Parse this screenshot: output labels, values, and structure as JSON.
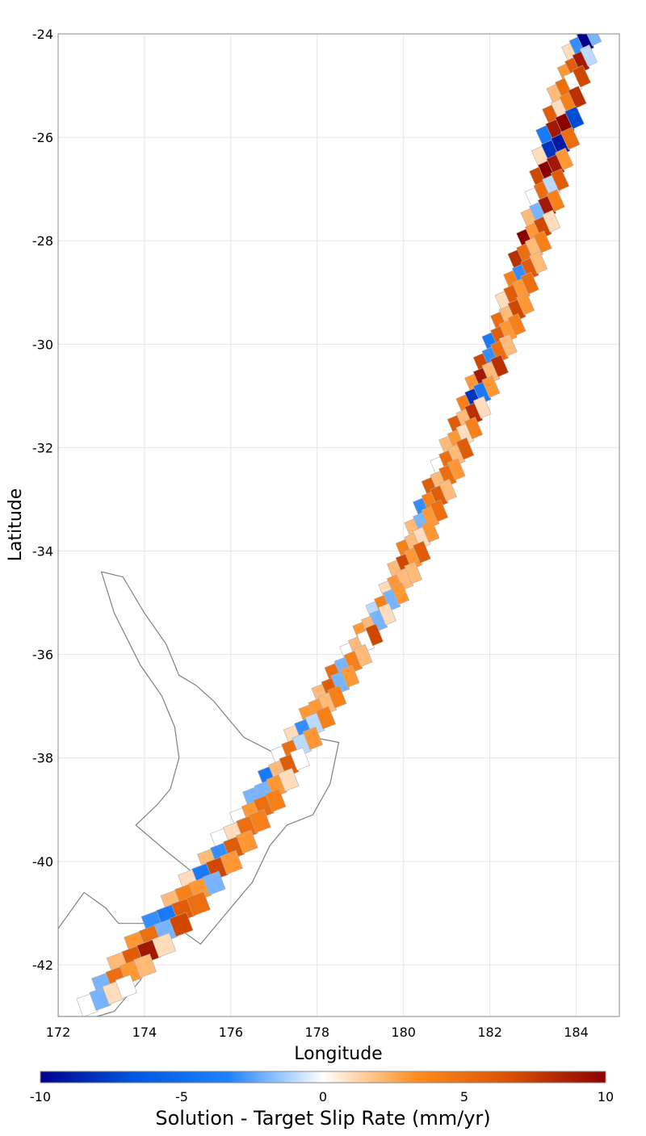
{
  "chart_data": {
    "type": "heatmap",
    "title": "",
    "xlabel": "Longitude",
    "ylabel": "Latitude",
    "xlim": [
      172,
      185
    ],
    "ylim": [
      -43,
      -24
    ],
    "x_ticks": [
      "172",
      "174",
      "176",
      "178",
      "180",
      "182",
      "184"
    ],
    "y_ticks": [
      "-24",
      "-26",
      "-28",
      "-30",
      "-32",
      "-34",
      "-36",
      "-38",
      "-40",
      "-42"
    ],
    "grid": true,
    "colorbar": {
      "title": "Solution - Target Slip Rate (mm/yr)",
      "range": [
        -10,
        10
      ],
      "ticks": [
        "-10",
        "-5",
        "0",
        "5",
        "10"
      ],
      "colors": [
        "#00008c",
        "#0057e0",
        "#1e82ff",
        "#ffffff",
        "#ff8c1e",
        "#d85000",
        "#8c0000"
      ]
    },
    "fault_trace": [
      [
        184.4,
        -24.0
      ],
      [
        184.3,
        -25.0
      ],
      [
        184.0,
        -26.0
      ],
      [
        183.8,
        -27.0
      ],
      [
        183.5,
        -28.0
      ],
      [
        183.1,
        -29.0
      ],
      [
        182.6,
        -30.0
      ],
      [
        182.1,
        -31.0
      ],
      [
        181.6,
        -32.0
      ],
      [
        181.1,
        -33.0
      ],
      [
        180.6,
        -34.0
      ],
      [
        180.1,
        -35.0
      ],
      [
        179.5,
        -36.0
      ],
      [
        178.8,
        -37.0
      ],
      [
        178.0,
        -38.0
      ],
      [
        177.3,
        -39.0
      ],
      [
        176.6,
        -40.0
      ],
      [
        175.6,
        -41.0
      ],
      [
        174.6,
        -42.0
      ],
      [
        173.4,
        -42.8
      ]
    ],
    "subsection_rows": [
      {
        "lat": -24.2,
        "lon": 184.2,
        "width": 0.9,
        "values": [
          1,
          -3,
          -10,
          -2
        ]
      },
      {
        "lat": -24.6,
        "lon": 184.1,
        "width": 0.9,
        "values": [
          3,
          6,
          9,
          -1
        ]
      },
      {
        "lat": -25.0,
        "lon": 183.9,
        "width": 1.0,
        "values": [
          2,
          5,
          0,
          7
        ]
      },
      {
        "lat": -25.4,
        "lon": 183.8,
        "width": 1.0,
        "values": [
          6,
          1,
          4,
          8
        ]
      },
      {
        "lat": -25.8,
        "lon": 183.7,
        "width": 1.1,
        "values": [
          -4,
          9,
          10,
          -7
        ]
      },
      {
        "lat": -26.2,
        "lon": 183.6,
        "width": 1.1,
        "values": [
          1,
          -8,
          -9,
          5
        ]
      },
      {
        "lat": -26.6,
        "lon": 183.5,
        "width": 1.0,
        "values": [
          7,
          10,
          9,
          3
        ]
      },
      {
        "lat": -27.0,
        "lon": 183.4,
        "width": 1.0,
        "values": [
          0,
          5,
          -1,
          6
        ]
      },
      {
        "lat": -27.4,
        "lon": 183.3,
        "width": 1.0,
        "values": [
          2,
          -2,
          9,
          4
        ]
      },
      {
        "lat": -27.8,
        "lon": 183.2,
        "width": 1.0,
        "values": [
          10,
          3,
          7,
          1
        ]
      },
      {
        "lat": -28.2,
        "lon": 183.0,
        "width": 1.0,
        "values": [
          8,
          5,
          2,
          4
        ]
      },
      {
        "lat": -28.6,
        "lon": 182.9,
        "width": 1.0,
        "values": [
          4,
          -3,
          6,
          2
        ]
      },
      {
        "lat": -29.0,
        "lon": 182.7,
        "width": 1.0,
        "values": [
          1,
          6,
          3,
          5
        ]
      },
      {
        "lat": -29.4,
        "lon": 182.6,
        "width": 1.0,
        "values": [
          5,
          2,
          7,
          3
        ]
      },
      {
        "lat": -29.8,
        "lon": 182.4,
        "width": 1.0,
        "values": [
          -4,
          6,
          3,
          4
        ]
      },
      {
        "lat": -30.2,
        "lon": 182.2,
        "width": 1.0,
        "values": [
          7,
          -3,
          5,
          2
        ]
      },
      {
        "lat": -30.6,
        "lon": 182.0,
        "width": 1.0,
        "values": [
          3,
          9,
          2,
          8
        ]
      },
      {
        "lat": -31.0,
        "lon": 181.8,
        "width": 1.0,
        "values": [
          4,
          -8,
          -4,
          3
        ]
      },
      {
        "lat": -31.4,
        "lon": 181.6,
        "width": 1.0,
        "values": [
          6,
          2,
          8,
          1
        ]
      },
      {
        "lat": -31.8,
        "lon": 181.4,
        "width": 1.0,
        "values": [
          2,
          3,
          1,
          4
        ]
      },
      {
        "lat": -32.2,
        "lon": 181.2,
        "width": 1.0,
        "values": [
          0,
          5,
          2,
          6
        ]
      },
      {
        "lat": -32.6,
        "lon": 181.0,
        "width": 1.0,
        "values": [
          6,
          2,
          5,
          3
        ]
      },
      {
        "lat": -33.0,
        "lon": 180.8,
        "width": 1.0,
        "values": [
          -3,
          4,
          6,
          2
        ]
      },
      {
        "lat": -33.4,
        "lon": 180.6,
        "width": 1.0,
        "values": [
          2,
          -2,
          3,
          5
        ]
      },
      {
        "lat": -33.8,
        "lon": 180.4,
        "width": 1.0,
        "values": [
          4,
          2,
          1,
          3
        ]
      },
      {
        "lat": -34.2,
        "lon": 180.2,
        "width": 1.0,
        "values": [
          2,
          7,
          3,
          6
        ]
      },
      {
        "lat": -34.6,
        "lon": 180.0,
        "width": 1.0,
        "values": [
          1,
          3,
          2,
          2
        ]
      },
      {
        "lat": -35.0,
        "lon": 179.7,
        "width": 1.0,
        "values": [
          -1,
          4,
          -2,
          3
        ]
      },
      {
        "lat": -35.4,
        "lon": 179.4,
        "width": 1.0,
        "values": [
          3,
          2,
          -2,
          1
        ]
      },
      {
        "lat": -35.8,
        "lon": 179.1,
        "width": 1.0,
        "values": [
          0,
          2,
          0,
          7
        ]
      },
      {
        "lat": -36.2,
        "lon": 178.8,
        "width": 1.1,
        "values": [
          5,
          -2,
          4,
          2
        ]
      },
      {
        "lat": -36.6,
        "lon": 178.5,
        "width": 1.1,
        "values": [
          2,
          6,
          -2,
          3
        ]
      },
      {
        "lat": -37.0,
        "lon": 178.2,
        "width": 1.1,
        "values": [
          3,
          3,
          2,
          4
        ]
      },
      {
        "lat": -37.4,
        "lon": 177.9,
        "width": 1.2,
        "values": [
          1,
          -3,
          -1,
          4
        ]
      },
      {
        "lat": -37.8,
        "lon": 177.6,
        "width": 1.2,
        "values": [
          0,
          5,
          -1,
          3
        ]
      },
      {
        "lat": -38.2,
        "lon": 177.3,
        "width": 1.2,
        "values": [
          -4,
          2,
          6,
          0
        ]
      },
      {
        "lat": -38.6,
        "lon": 177.0,
        "width": 1.3,
        "values": [
          -2,
          -2,
          3,
          1
        ]
      },
      {
        "lat": -39.0,
        "lon": 176.7,
        "width": 1.3,
        "values": [
          0,
          3,
          5,
          4
        ]
      },
      {
        "lat": -39.4,
        "lon": 176.3,
        "width": 1.4,
        "values": [
          0,
          1,
          5,
          4
        ]
      },
      {
        "lat": -39.8,
        "lon": 176.0,
        "width": 1.4,
        "values": [
          2,
          -3,
          6,
          3
        ]
      },
      {
        "lat": -40.2,
        "lon": 175.6,
        "width": 1.5,
        "values": [
          1,
          -4,
          7,
          3
        ]
      },
      {
        "lat": -40.6,
        "lon": 175.2,
        "width": 1.5,
        "values": [
          2,
          4,
          3,
          -2
        ]
      },
      {
        "lat": -41.0,
        "lon": 174.8,
        "width": 1.6,
        "values": [
          -3,
          -4,
          6,
          5
        ]
      },
      {
        "lat": -41.4,
        "lon": 174.4,
        "width": 1.6,
        "values": [
          3,
          5,
          -2,
          7
        ]
      },
      {
        "lat": -41.8,
        "lon": 174.0,
        "width": 1.6,
        "values": [
          2,
          6,
          9,
          1
        ]
      },
      {
        "lat": -42.2,
        "lon": 173.6,
        "width": 1.5,
        "values": [
          -2,
          5,
          3,
          2
        ]
      },
      {
        "lat": -42.6,
        "lon": 173.2,
        "width": 1.4,
        "values": [
          0,
          -2,
          1,
          0
        ]
      }
    ],
    "coastline": [
      [
        173.0,
        -34.4
      ],
      [
        173.5,
        -34.5
      ],
      [
        174.0,
        -35.2
      ],
      [
        174.5,
        -35.8
      ],
      [
        174.8,
        -36.4
      ],
      [
        175.2,
        -36.6
      ],
      [
        175.6,
        -36.9
      ],
      [
        175.9,
        -37.2
      ],
      [
        176.3,
        -37.6
      ],
      [
        177.0,
        -37.9
      ],
      [
        177.9,
        -37.6
      ],
      [
        178.5,
        -37.7
      ],
      [
        178.3,
        -38.5
      ],
      [
        177.9,
        -39.1
      ],
      [
        177.3,
        -39.3
      ],
      [
        176.9,
        -39.7
      ],
      [
        176.5,
        -40.4
      ],
      [
        176.0,
        -40.9
      ],
      [
        175.3,
        -41.6
      ],
      [
        174.8,
        -41.3
      ],
      [
        174.9,
        -40.8
      ],
      [
        175.1,
        -40.2
      ],
      [
        174.5,
        -39.8
      ],
      [
        173.8,
        -39.3
      ],
      [
        174.3,
        -38.9
      ],
      [
        174.6,
        -38.6
      ],
      [
        174.8,
        -38.0
      ],
      [
        174.7,
        -37.4
      ],
      [
        174.4,
        -36.8
      ],
      [
        173.9,
        -36.2
      ],
      [
        173.3,
        -35.2
      ],
      [
        173.0,
        -34.4
      ]
    ],
    "coastline_south": [
      [
        172.6,
        -40.6
      ],
      [
        173.1,
        -40.9
      ],
      [
        173.4,
        -41.2
      ],
      [
        174.0,
        -41.2
      ],
      [
        174.3,
        -41.7
      ],
      [
        173.9,
        -42.3
      ],
      [
        173.3,
        -42.9
      ],
      [
        172.9,
        -43.0
      ],
      [
        172.0,
        -43.0
      ],
      [
        172.0,
        -41.3
      ],
      [
        172.6,
        -40.6
      ]
    ]
  }
}
